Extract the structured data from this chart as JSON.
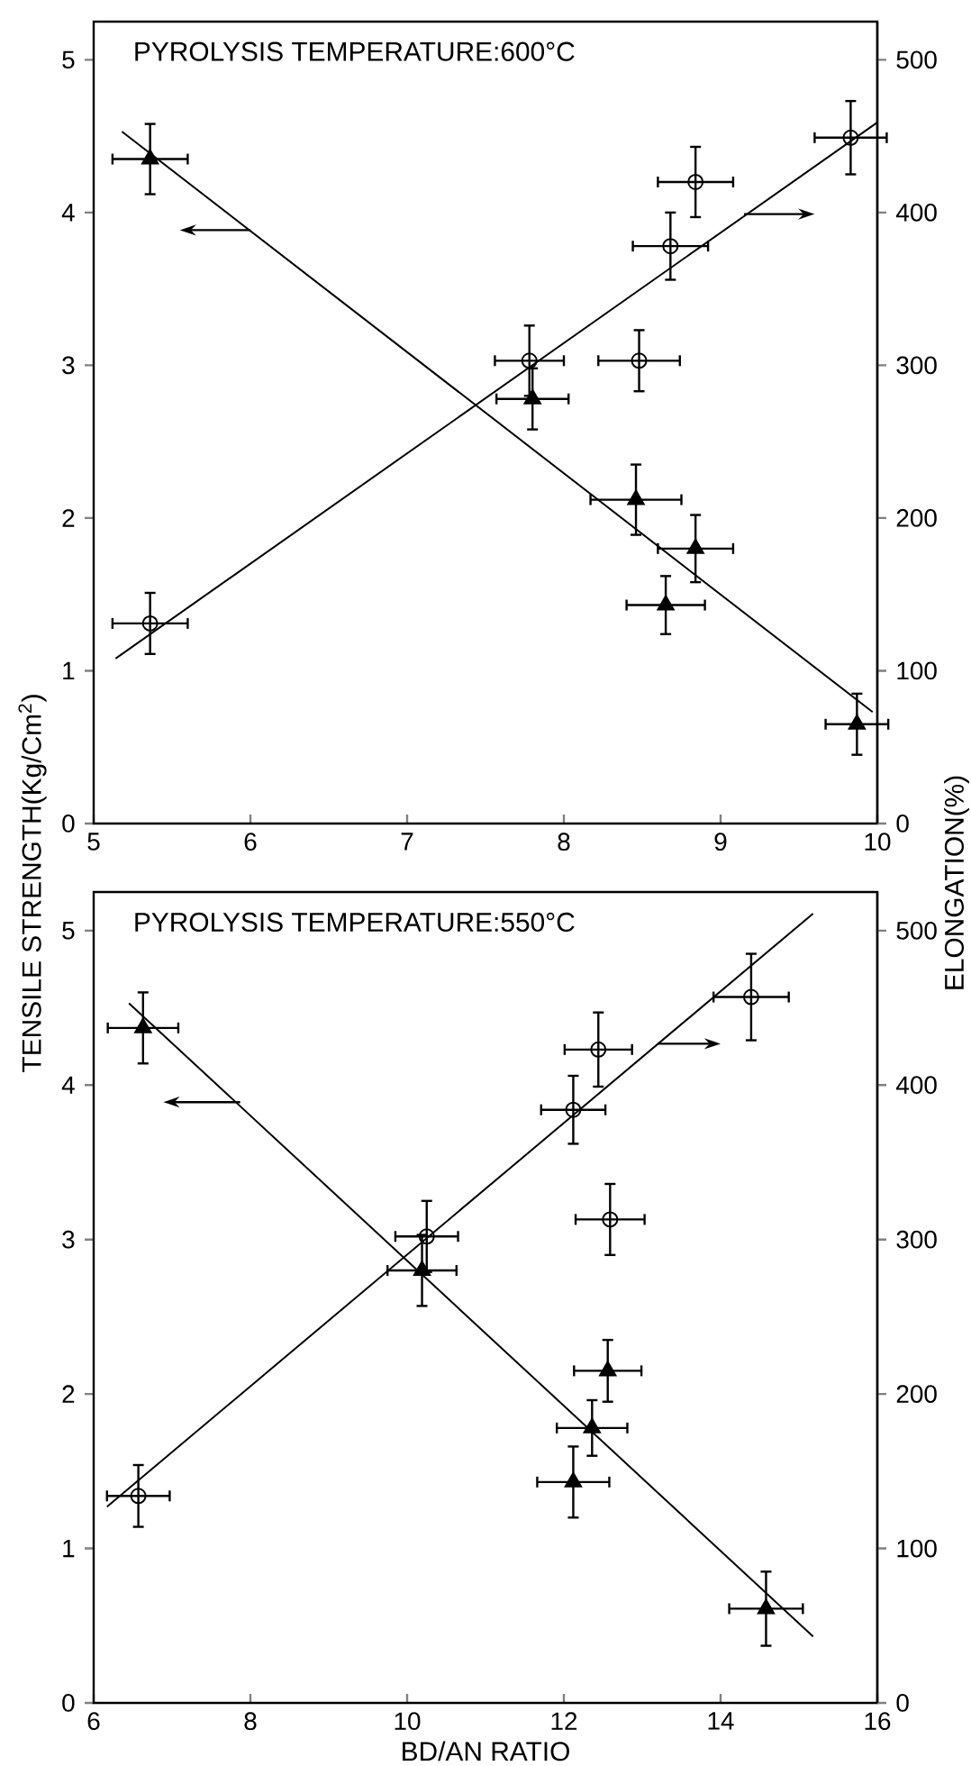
{
  "chart_data": [
    {
      "type": "scatter",
      "title": "PYROLYSIS TEMPERATURE:600°C",
      "ylabel": "TENSILE STRENGTH(Kg/Cm$^{2}$)",
      "y2label": "ELONGATION(%)",
      "xlim": [
        5,
        10
      ],
      "xticks": [
        5,
        6,
        7,
        8,
        9,
        10
      ],
      "ylim": [
        0,
        5.25
      ],
      "yticks": [
        0,
        1,
        2,
        3,
        4,
        5
      ],
      "y2lim": [
        0,
        525
      ],
      "y2ticks": [
        0,
        100,
        200,
        300,
        400,
        500
      ],
      "series": [
        {
          "marker": "triangle",
          "color": "#000000",
          "x": [
            5.36,
            7.8,
            8.46,
            8.84,
            8.65,
            9.87
          ],
          "values": [
            4.35,
            2.78,
            2.12,
            1.8,
            1.43,
            0.65
          ],
          "errors": [
            0.23,
            0.2,
            0.23,
            0.22,
            0.19,
            0.2
          ],
          "xerrors": [
            0.24,
            0.23,
            0.29,
            0.24,
            0.25,
            0.2
          ]
        },
        {
          "marker": "circle",
          "axis": "y2",
          "color": "#000000",
          "x": [
            5.36,
            7.78,
            8.48,
            8.68,
            8.84,
            9.83
          ],
          "values": [
            131,
            303,
            303,
            378,
            420,
            449
          ],
          "errors": [
            20,
            23,
            20,
            22,
            23,
            24
          ],
          "xerrors": [
            0.24,
            0.22,
            0.26,
            0.24,
            0.24,
            0.23
          ]
        },
        {
          "type": "line",
          "color": "#000000",
          "x": [
            5.18,
            9.97
          ],
          "values": [
            4.53,
            0.73
          ]
        },
        {
          "type": "line",
          "axis": "y2",
          "color": "#000000",
          "x": [
            5.14,
            10
          ],
          "values": [
            108,
            459
          ]
        }
      ]
    },
    {
      "type": "scatter",
      "title": "PYROLYSIS TEMPERATURE:550°C",
      "xlabel": "BD/AN RATIO",
      "xlim": [
        6,
        16
      ],
      "xticks": [
        6,
        8,
        10,
        12,
        14,
        16
      ],
      "ylim": [
        0,
        5.25
      ],
      "yticks": [
        0,
        1,
        2,
        3,
        4,
        5
      ],
      "y2lim": [
        0,
        525
      ],
      "y2ticks": [
        0,
        100,
        200,
        300,
        400,
        500
      ],
      "series": [
        {
          "marker": "triangle",
          "color": "#000000",
          "x": [
            6.63,
            10.19,
            12.56,
            12.36,
            12.12,
            14.58
          ],
          "values": [
            4.37,
            2.8,
            2.15,
            1.78,
            1.43,
            0.61
          ],
          "errors": [
            0.23,
            0.23,
            0.2,
            0.18,
            0.23,
            0.24
          ],
          "xerrors": [
            0.45,
            0.44,
            0.43,
            0.45,
            0.46,
            0.47
          ]
        },
        {
          "marker": "circle",
          "axis": "y2",
          "color": "#000000",
          "x": [
            6.57,
            10.25,
            12.12,
            12.44,
            12.59,
            14.39
          ],
          "values": [
            134,
            302,
            384,
            423,
            313,
            457
          ],
          "errors": [
            20,
            23,
            22,
            24,
            23,
            28
          ],
          "xerrors": [
            0.4,
            0.4,
            0.41,
            0.43,
            0.44,
            0.48
          ]
        },
        {
          "type": "line",
          "color": "#000000",
          "x": [
            6.45,
            15.18
          ],
          "values": [
            4.53,
            0.43
          ]
        },
        {
          "type": "line",
          "axis": "y2",
          "color": "#000000",
          "x": [
            6.17,
            15.18
          ],
          "values": [
            127,
            511
          ]
        }
      ]
    }
  ]
}
